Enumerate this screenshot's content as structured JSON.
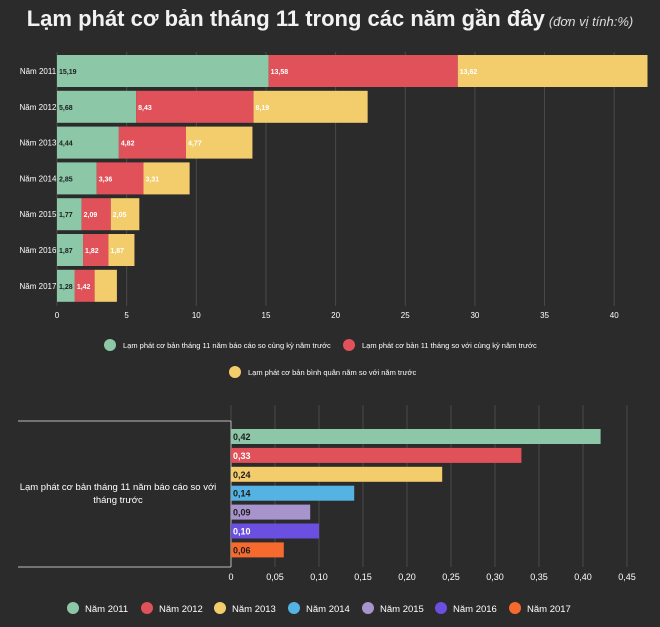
{
  "title": {
    "main": "Lạm phát cơ bản tháng 11 trong các năm gần đây",
    "unit": "(đơn vị tính:%)"
  },
  "colors": {
    "green": "#8cc8a8",
    "red": "#e0515a",
    "yellow": "#f3cd6c",
    "blue": "#55b3e4",
    "lavender": "#a894cc",
    "purple": "#6a4fe0",
    "orange": "#f76a2e",
    "grid": "#4a4a4a",
    "axis": "#bbbbbb"
  },
  "chart_data": [
    {
      "type": "bar",
      "orientation": "horizontal",
      "stacked": true,
      "categories": [
        "Năm 2011",
        "Năm 2012",
        "Năm 2013",
        "Năm 2014",
        "Năm 2015",
        "Năm 2016",
        "Năm 2017"
      ],
      "series": [
        {
          "name": "Lạm phát cơ bản tháng 11 năm báo cáo so cùng kỳ năm trước",
          "color": "#8cc8a8",
          "values": [
            15.19,
            5.68,
            4.44,
            2.85,
            1.77,
            1.87,
            1.28
          ],
          "labels": [
            "15,19",
            "5,68",
            "4,44",
            "2,85",
            "1,77",
            "1,87",
            "1,28"
          ]
        },
        {
          "name": "Lạm phát cơ bản 11 tháng so với cùng kỳ năm trước",
          "color": "#e0515a",
          "values": [
            13.58,
            8.43,
            4.82,
            3.36,
            2.09,
            1.82,
            1.42
          ],
          "labels": [
            "13,58",
            "8,43",
            "4,82",
            "3,36",
            "2,09",
            "1,82",
            "1,42"
          ]
        },
        {
          "name": "Lạm phát cơ bản bình quân năm so với năm trước",
          "color": "#f3cd6c",
          "values": [
            13.62,
            8.19,
            4.77,
            3.31,
            2.05,
            1.87,
            1.6
          ],
          "labels": [
            "13,62",
            "8,19",
            "4,77",
            "3,31",
            "2,05",
            "1,87",
            ""
          ]
        }
      ],
      "xlim": [
        0,
        43
      ],
      "xticks": [
        0,
        5,
        10,
        15,
        20,
        25,
        30,
        35,
        40
      ],
      "xtick_labels": [
        "0",
        "5",
        "10",
        "15",
        "20",
        "25",
        "30",
        "35",
        "40"
      ],
      "legend": "bottom"
    },
    {
      "type": "bar",
      "orientation": "horizontal",
      "grouped": true,
      "categories": [
        "Lạm phát cơ bản tháng 11 năm báo cáo so với tháng trước"
      ],
      "series": [
        {
          "name": "Năm 2011",
          "color": "#8cc8a8",
          "value": 0.42,
          "label": "0,42"
        },
        {
          "name": "Năm 2012",
          "color": "#e0515a",
          "value": 0.33,
          "label": "0,33"
        },
        {
          "name": "Năm 2013",
          "color": "#f3cd6c",
          "value": 0.24,
          "label": "0,24"
        },
        {
          "name": "Năm 2014",
          "color": "#55b3e4",
          "value": 0.14,
          "label": "0,14"
        },
        {
          "name": "Năm 2015",
          "color": "#a894cc",
          "value": 0.09,
          "label": "0,09"
        },
        {
          "name": "Năm 2016",
          "color": "#6a4fe0",
          "value": 0.1,
          "label": "0,10"
        },
        {
          "name": "Năm 2017",
          "color": "#f76a2e",
          "value": 0.06,
          "label": "0,06"
        }
      ],
      "xlim": [
        0,
        0.45
      ],
      "xticks": [
        0,
        0.05,
        0.1,
        0.15,
        0.2,
        0.25,
        0.3,
        0.35,
        0.4,
        0.45
      ],
      "xtick_labels": [
        "0",
        "0,05",
        "0,10",
        "0,15",
        "0,20",
        "0,25",
        "0,30",
        "0,35",
        "0,40",
        "0,45"
      ],
      "legend": "bottom"
    }
  ]
}
